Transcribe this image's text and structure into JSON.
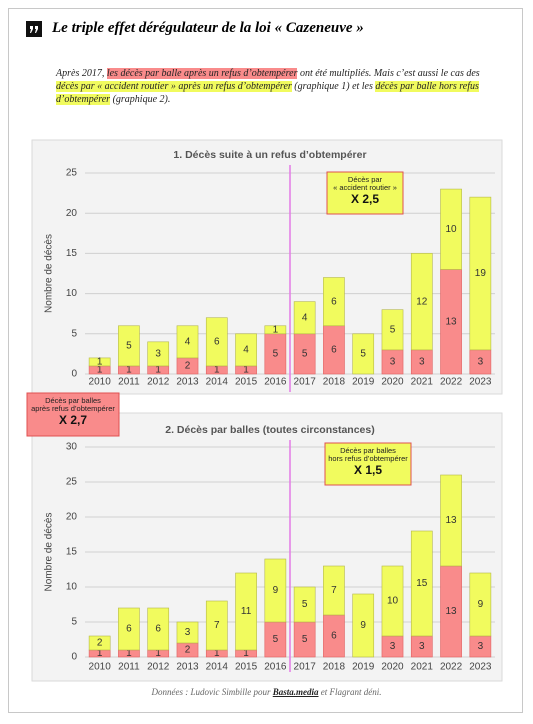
{
  "header": {
    "title": "Le triple effet dérégulateur de la loi « Cazeneuve »"
  },
  "intro": [
    {
      "text": "Après 2017, "
    },
    {
      "text": "les décès par balle après un refus d’obtempérer",
      "highlight": "#f98b8b"
    },
    {
      "text": " ont été multipliés. Mais c’est aussi le cas des "
    },
    {
      "text": "décès par « accident routier » après un refus d’obtempérer",
      "highlight": "#f1fb5e"
    },
    {
      "text": "  (graphique 1) et les "
    },
    {
      "text": "décès par balle hors refus d’obtempérer",
      "highlight": "#f1fb5e"
    },
    {
      "text": " (graphique 2)."
    }
  ],
  "callout": {
    "lines": [
      "Décès par balles",
      "après refus d’obtempérer"
    ],
    "factor": "X 2,7",
    "color": "#f98b8b"
  },
  "chart_data": [
    {
      "type": "bar",
      "stacked": true,
      "title": "1. Décès suite à un refus d’obtempérer",
      "y_label": "Nombre de décès",
      "categories": [
        "2010",
        "2011",
        "2012",
        "2013",
        "2014",
        "2015",
        "2016",
        "2017",
        "2018",
        "2019",
        "2020",
        "2021",
        "2022",
        "2023"
      ],
      "series": [
        {
          "color": "#f98b8b",
          "values": [
            1,
            1,
            1,
            2,
            1,
            1,
            5,
            5,
            6,
            0,
            3,
            3,
            13,
            3
          ]
        },
        {
          "color": "#f1fb5e",
          "values": [
            1,
            5,
            3,
            4,
            6,
            4,
            1,
            4,
            6,
            5,
            5,
            12,
            10,
            19
          ]
        }
      ],
      "ylim": [
        0,
        25
      ],
      "yticks": [
        0,
        5,
        10,
        15,
        20,
        25
      ],
      "grid": true,
      "annotation": {
        "lines": [
          "Décès par",
          "« accident routier »"
        ],
        "factor": "X 2,5",
        "color": "#f1fb5e"
      }
    },
    {
      "type": "bar",
      "stacked": true,
      "title": "2. Décès par balles (toutes circonstances)",
      "y_label": "Nombre de décès",
      "categories": [
        "2010",
        "2011",
        "2012",
        "2013",
        "2014",
        "2015",
        "2016",
        "2017",
        "2018",
        "2019",
        "2020",
        "2021",
        "2022",
        "2023"
      ],
      "series": [
        {
          "color": "#f98b8b",
          "values": [
            1,
            1,
            1,
            2,
            1,
            1,
            5,
            5,
            6,
            0,
            3,
            3,
            13,
            3
          ]
        },
        {
          "color": "#f1fb5e",
          "values": [
            2,
            6,
            6,
            3,
            7,
            11,
            9,
            5,
            7,
            9,
            10,
            15,
            13,
            9
          ]
        }
      ],
      "ylim": [
        0,
        30
      ],
      "yticks": [
        0,
        5,
        10,
        15,
        20,
        25,
        30
      ],
      "grid": true,
      "annotation": {
        "lines": [
          "Décès par balles",
          "hors refus d’obtempérer"
        ],
        "factor": "X 1,5",
        "color": "#f1fb5e"
      }
    }
  ],
  "footer": [
    {
      "text": "Données : Ludovic Simbille pour "
    },
    {
      "text": "Basta.media",
      "strong": true
    },
    {
      "text": " et Flagrant déni."
    }
  ]
}
